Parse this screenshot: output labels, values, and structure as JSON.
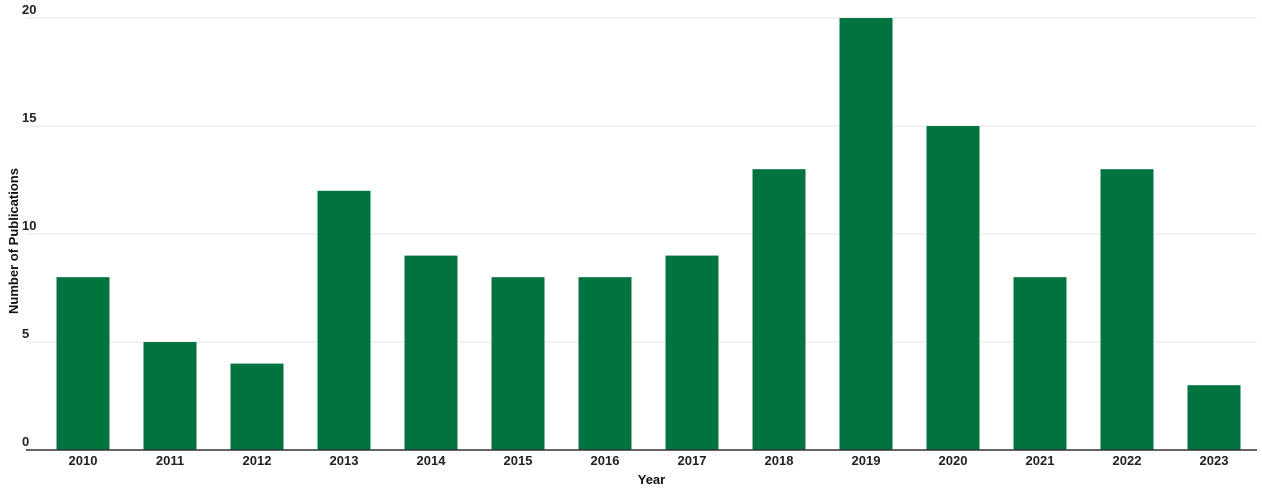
{
  "chart_data": {
    "type": "bar",
    "categories": [
      "2010",
      "2011",
      "2012",
      "2013",
      "2014",
      "2015",
      "2016",
      "2017",
      "2018",
      "2019",
      "2020",
      "2021",
      "2022",
      "2023"
    ],
    "values": [
      8,
      5,
      4,
      12,
      9,
      8,
      8,
      9,
      13,
      20,
      15,
      8,
      13,
      3
    ],
    "xlabel": "Year",
    "ylabel": "Number of Publications",
    "ylim": [
      0,
      20
    ],
    "yticks": [
      0,
      5,
      10,
      15,
      20
    ],
    "grid": true,
    "bar_color": "#00733f"
  }
}
